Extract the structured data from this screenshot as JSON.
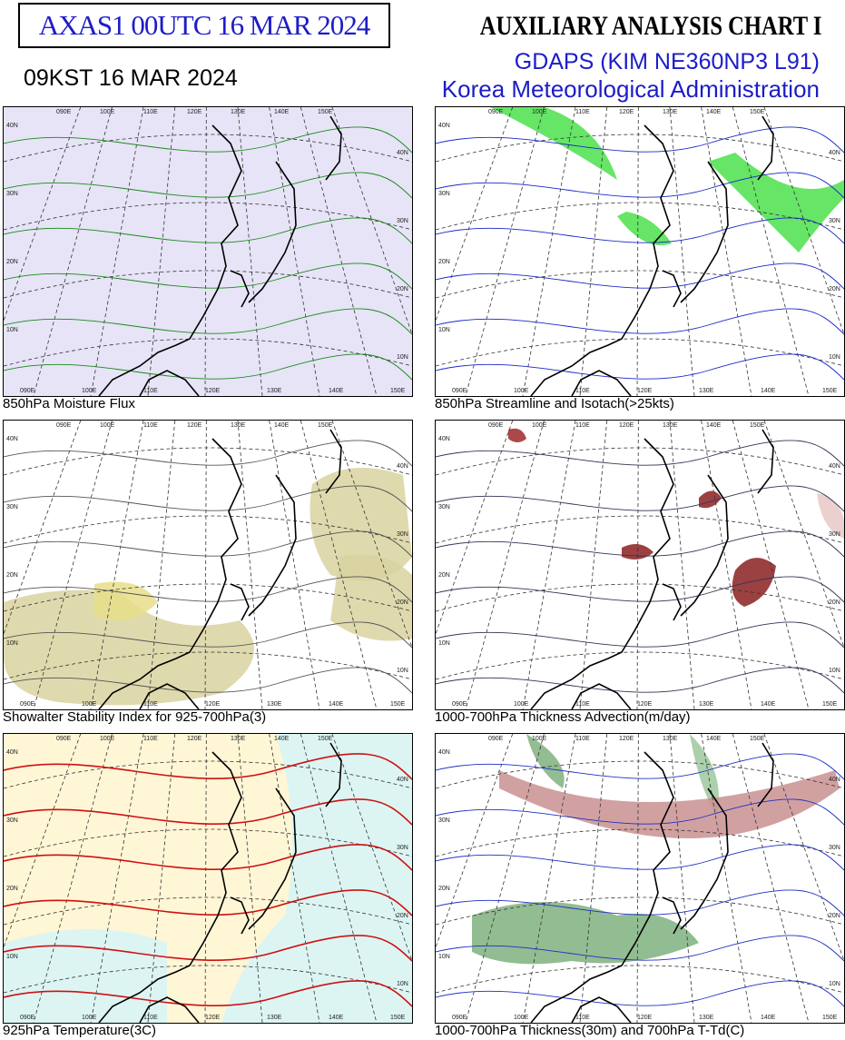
{
  "header": {
    "code": "AXAS1  00UTC 16 MAR 2024",
    "local_time": "09KST 16 MAR 2024",
    "title": "AUXILIARY ANALYSIS CHART  I",
    "model": "GDAPS (KIM NE360NP3 L91)",
    "agency": "Korea Meteorological Administration"
  },
  "panels": [
    {
      "caption": "850hPa Moisture Flux"
    },
    {
      "caption": "850hPa Streamline and Isotach(>25kts)"
    },
    {
      "caption": "Showalter Stability Index for 925-700hPa(3)"
    },
    {
      "caption": "1000-700hPa Thickness Advection(m/day)"
    },
    {
      "caption": "925hPa Temperature(3C)"
    },
    {
      "caption": "1000-700hPa Thickness(30m) and 700hPa T-Td(C)"
    }
  ],
  "grid_labels": {
    "lat": [
      "40N",
      "30N",
      "20N",
      "10N"
    ],
    "lon": [
      "090E",
      "100E",
      "110E",
      "120E",
      "130E",
      "140E",
      "150E"
    ]
  }
}
